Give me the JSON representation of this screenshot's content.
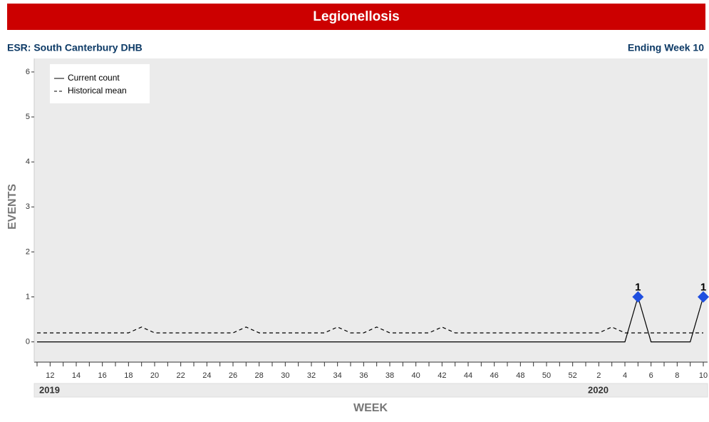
{
  "chart_data": {
    "type": "line",
    "title": "Legionellosis",
    "subtitle_left": "ESR: South Canterbury DHB",
    "subtitle_right": "Ending Week 10",
    "y_label": "EVENTS",
    "x_label": "WEEK",
    "years": [
      "2019",
      "2020"
    ],
    "categories": [
      null,
      12,
      null,
      14,
      null,
      16,
      null,
      18,
      null,
      20,
      null,
      22,
      null,
      24,
      null,
      26,
      null,
      28,
      null,
      30,
      null,
      32,
      null,
      34,
      null,
      36,
      null,
      38,
      null,
      40,
      null,
      42,
      null,
      44,
      null,
      46,
      null,
      48,
      null,
      50,
      null,
      52,
      null,
      2,
      null,
      4,
      null,
      6,
      null,
      8,
      null,
      10
    ],
    "series": [
      {
        "name": "Current count",
        "color": "#000000",
        "dash": false,
        "values": [
          0,
          0,
          0,
          0,
          0,
          0,
          0,
          0,
          0,
          0,
          0,
          0,
          0,
          0,
          0,
          0,
          0,
          0,
          0,
          0,
          0,
          0,
          0,
          0,
          0,
          0,
          0,
          0,
          0,
          0,
          0,
          0,
          0,
          0,
          0,
          0,
          0,
          0,
          0,
          0,
          0,
          0,
          0,
          0,
          0,
          0,
          1,
          0,
          0,
          0,
          0,
          1
        ]
      },
      {
        "name": "Historical mean",
        "color": "#000000",
        "dash": true,
        "values": [
          0.2,
          0.2,
          0.2,
          0.2,
          0.2,
          0.2,
          0.2,
          0.2,
          0.33,
          0.2,
          0.2,
          0.2,
          0.2,
          0.2,
          0.2,
          0.2,
          0.33,
          0.2,
          0.2,
          0.2,
          0.2,
          0.2,
          0.2,
          0.33,
          0.2,
          0.2,
          0.33,
          0.2,
          0.2,
          0.2,
          0.2,
          0.33,
          0.2,
          0.2,
          0.2,
          0.2,
          0.2,
          0.2,
          0.2,
          0.2,
          0.2,
          0.2,
          0.2,
          0.2,
          0.33,
          0.2,
          0.2,
          0.2,
          0.2,
          0.2,
          0.2,
          0.2
        ]
      }
    ],
    "marker_color": "#1f4fe0",
    "ylim": [
      -0.45,
      6.3
    ],
    "yticks": [
      0,
      1,
      2,
      3,
      4,
      5,
      6
    ],
    "grid": false,
    "legend": "upper left"
  }
}
